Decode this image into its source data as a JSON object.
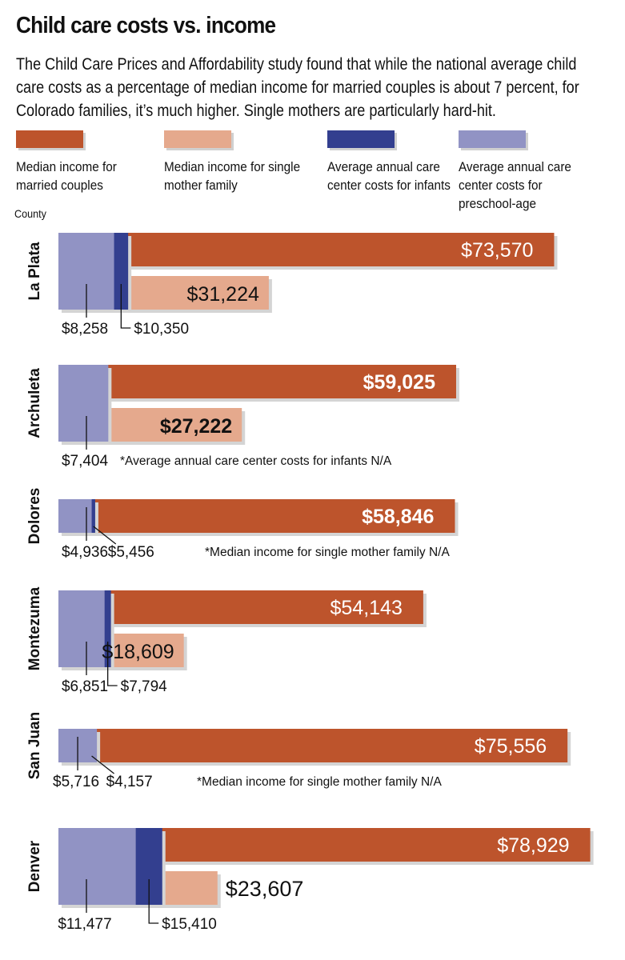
{
  "title": "Child care costs vs. income",
  "subtitle": "The Child Care Prices and Affordability study found that while the national average child care costs as a percentage of median income for married couples is about 7 percent, for Colorado families, it’s much higher.  Single mothers are particularly hard-hit.",
  "legend": [
    {
      "label": "Median income for married couples",
      "color": "#bd542c"
    },
    {
      "label": "Median income for single mother family",
      "color": "#e5a98d"
    },
    {
      "label": "Average annual care center costs for infants",
      "color": "#333f8f"
    },
    {
      "label": "Average annual care center costs for preschool-age",
      "color": "#9193c4"
    }
  ],
  "county_label": "County",
  "chart_data": {
    "type": "bar",
    "title": "Child care costs vs. income",
    "categories": [
      "La Plata",
      "Archuleta",
      "Dolores",
      "Montezuma",
      "San Juan",
      "Denver"
    ],
    "series": [
      {
        "name": "Median income for married couples",
        "values": [
          73570,
          59025,
          58846,
          54143,
          75556,
          78929
        ]
      },
      {
        "name": "Median income for single mother family",
        "values": [
          31224,
          27222,
          null,
          18609,
          null,
          23607
        ]
      },
      {
        "name": "Average annual care center costs for infants",
        "values": [
          10350,
          null,
          5456,
          7794,
          4157,
          15410
        ]
      },
      {
        "name": "Average annual care center costs for preschool-age",
        "values": [
          8258,
          7404,
          4936,
          6851,
          5716,
          11477
        ]
      }
    ],
    "labels": {
      "married": [
        "$73,570",
        "$59,025",
        "$58,846",
        "$54,143",
        "$75,556",
        "$78,929"
      ],
      "single": [
        "$31,224",
        "$27,222",
        null,
        "$18,609",
        null,
        "$23,607"
      ],
      "infant": [
        "$10,350",
        null,
        "$5,456",
        "$7,794",
        "$4,157",
        "$15,410"
      ],
      "preschool": [
        "$8,258",
        "$7,404",
        "$4,936",
        "$6,851",
        "$5,716",
        "$11,477"
      ]
    },
    "notes": [
      null,
      "*Average annual  care center costs for infants N/A",
      "*Median income for single mother family N/A",
      null,
      "*Median income for single mother family N/A",
      null
    ]
  }
}
